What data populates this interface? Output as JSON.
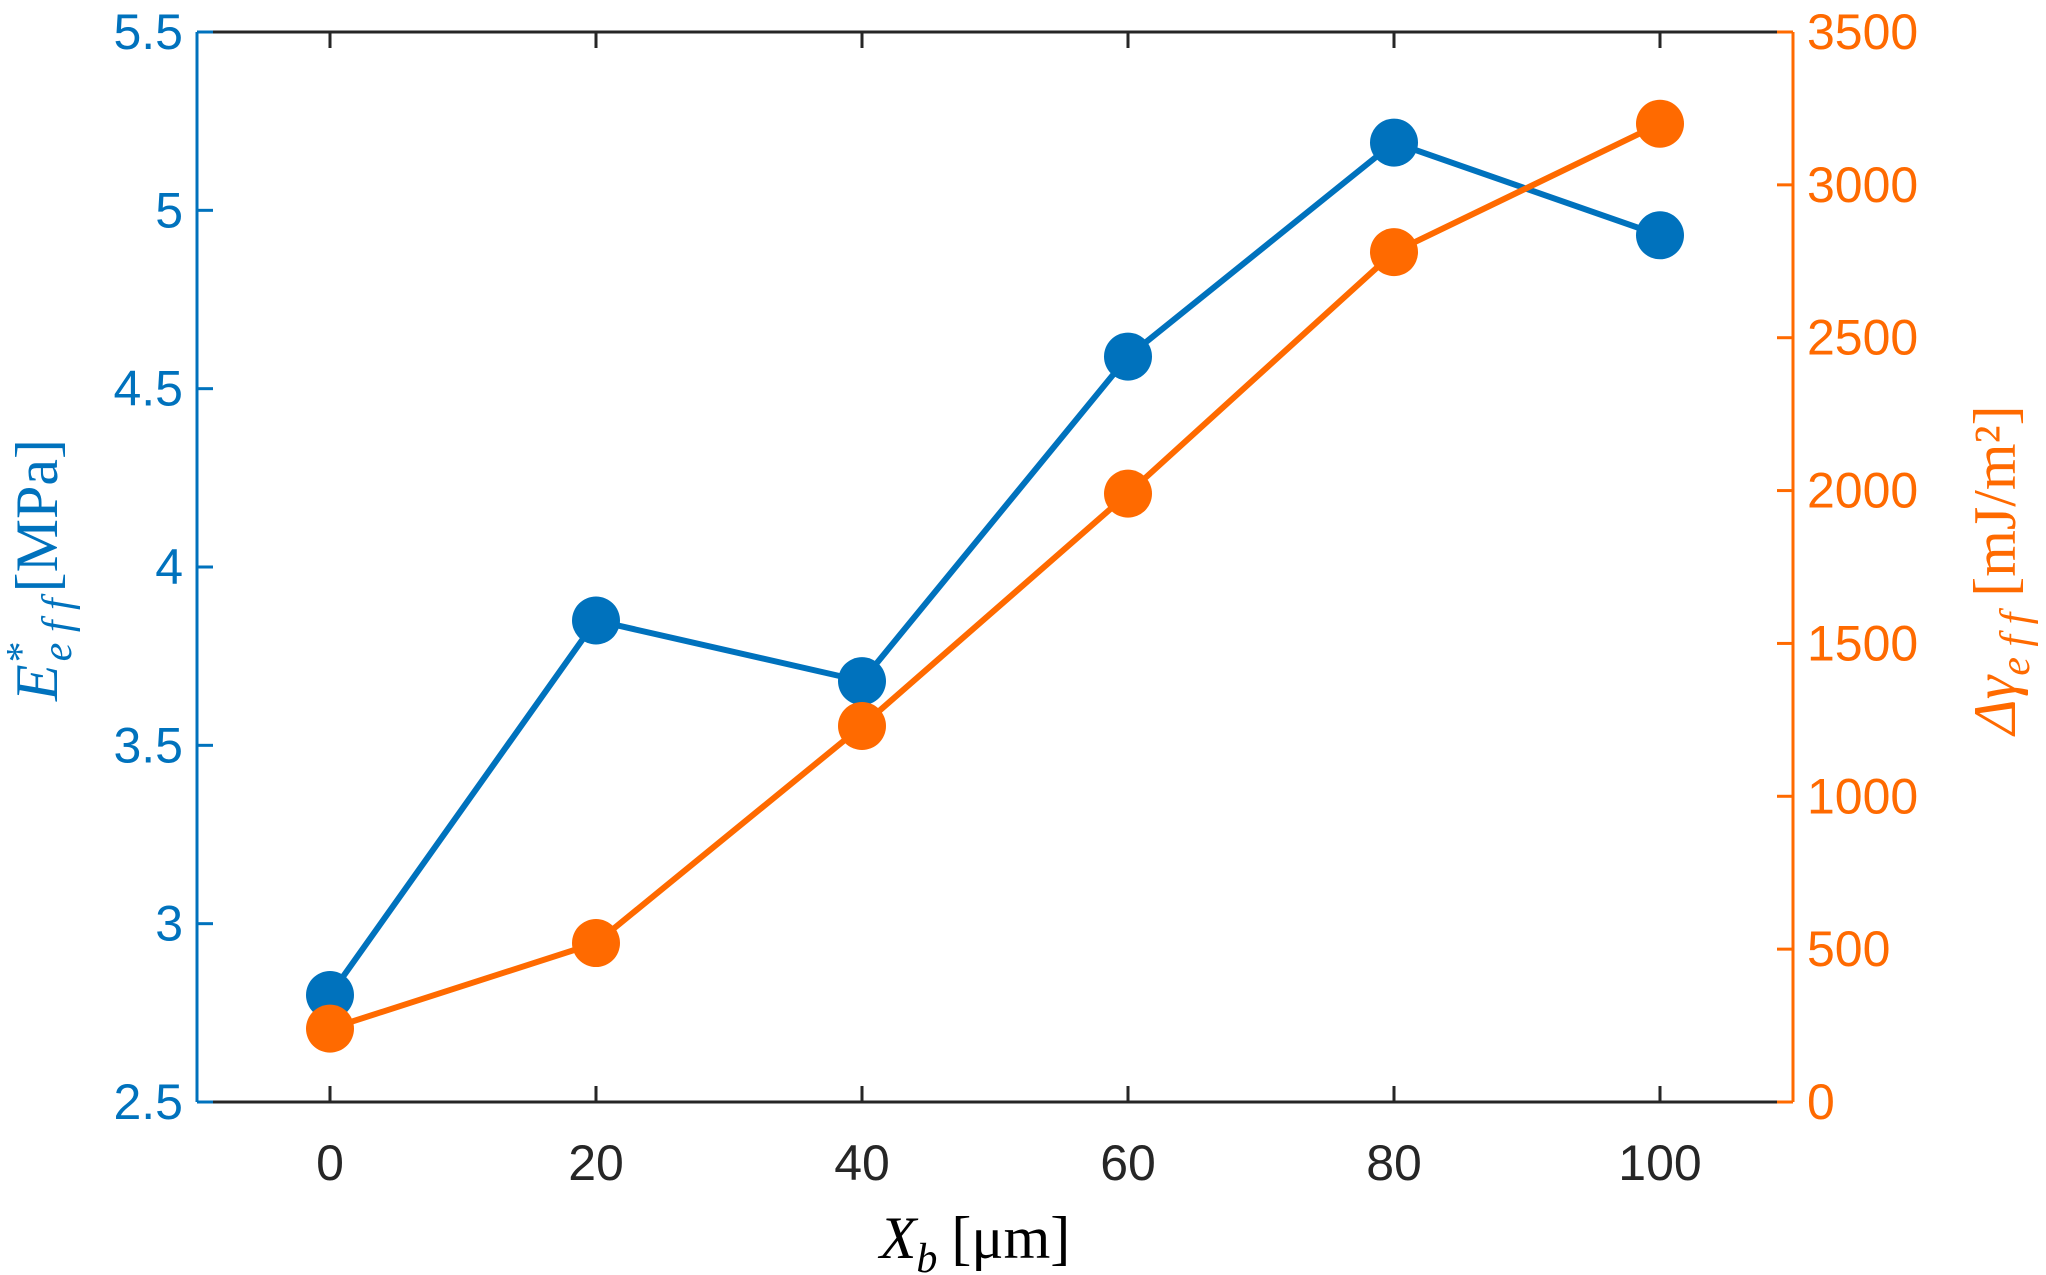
{
  "chart_data": {
    "type": "line",
    "title": "",
    "x": [
      0,
      20,
      40,
      60,
      80,
      100
    ],
    "xlim": [
      -10,
      110
    ],
    "xticks": [
      "0",
      "20",
      "40",
      "60",
      "80",
      "100"
    ],
    "xlabel": "X_b [μm]",
    "xlabel_main": "X",
    "xlabel_sub": "b",
    "xlabel_unit": "[μm]",
    "grid": false,
    "series": [
      {
        "name": "E*_eff",
        "axis": "left",
        "color": "#0072BD",
        "values": [
          2.8,
          3.85,
          3.68,
          4.59,
          5.19,
          4.93
        ]
      },
      {
        "name": "Δγ_eff",
        "axis": "right",
        "color": "#FF6A00",
        "values": [
          240,
          520,
          1230,
          1990,
          2780,
          3200
        ]
      }
    ],
    "left_axis": {
      "label": "E*_eff [MPa]",
      "label_main": "E",
      "label_sup": "*",
      "label_sub": "e f f",
      "label_unit": "[MPa]",
      "ylim": [
        2.5,
        5.5
      ],
      "ticks": [
        2.5,
        3,
        3.5,
        4,
        4.5,
        5,
        5.5
      ],
      "tick_labels": [
        "2.5",
        "3",
        "3.5",
        "4",
        "4.5",
        "5",
        "5.5"
      ],
      "color": "#0072BD"
    },
    "right_axis": {
      "label": "Δγ_eff [mJ/m²]",
      "label_main": "Δγ",
      "label_sub": "e f f",
      "label_unit": "[mJ/m²]",
      "ylim": [
        0,
        3500
      ],
      "ticks": [
        0,
        500,
        1000,
        1500,
        2000,
        2500,
        3000,
        3500
      ],
      "tick_labels": [
        "0",
        "500",
        "1000",
        "1500",
        "2000",
        "2500",
        "3000",
        "3500"
      ],
      "color": "#FF6A00"
    }
  }
}
